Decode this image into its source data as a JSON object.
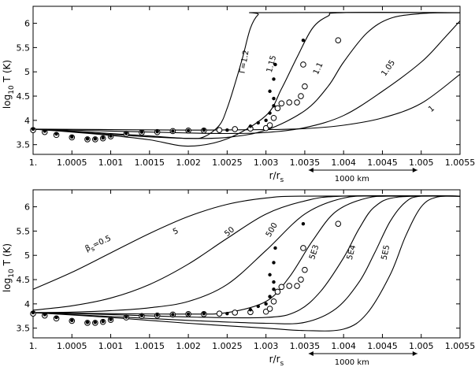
{
  "chart_data": [
    {
      "type": "line",
      "xlabel": "r/r",
      "xlabel_sub": "s",
      "ylabel": "log",
      "ylabel_sub": "10",
      "ylabel_rest": "T (K)",
      "xlim": [
        1.0,
        1.0055
      ],
      "ylim": [
        3.3,
        6.35
      ],
      "x_ticks": [
        1.0,
        1.0005,
        1.001,
        1.0015,
        1.002,
        1.0025,
        1.003,
        1.0035,
        1.004,
        1.0045,
        1.005,
        1.0055
      ],
      "x_tick_labels": [
        "1.",
        "1.0005",
        "1.001",
        "1.0015",
        "1.002",
        "1.0025",
        "1.003",
        "1.0035",
        "1.004",
        "1.0045",
        "1.005",
        "1.0055"
      ],
      "y_ticks": [
        3.5,
        4.0,
        4.5,
        5.0,
        5.5,
        6.0
      ],
      "y_tick_labels": [
        "3.5",
        "4",
        "4.5",
        "5",
        "5.5",
        "6"
      ],
      "scale_bar": {
        "label": "1000  km",
        "x_start": 1.00355,
        "x_end": 1.00495
      },
      "series": [
        {
          "name": "Γ=1.2",
          "label_at": [
            1.00275,
            5.2
          ],
          "label_rot": -80,
          "points": [
            [
              1.0,
              3.82
            ],
            [
              1.0005,
              3.77
            ],
            [
              1.001,
              3.71
            ],
            [
              1.0015,
              3.66
            ],
            [
              1.002,
              3.63
            ],
            [
              1.0022,
              3.66
            ],
            [
              1.0024,
              3.9
            ],
            [
              1.0025,
              4.25
            ],
            [
              1.0026,
              4.75
            ],
            [
              1.0027,
              5.3
            ],
            [
              1.0028,
              5.9
            ],
            [
              1.0029,
              6.18
            ],
            [
              1.003,
              6.22
            ],
            [
              1.0055,
              6.22
            ]
          ]
        },
        {
          "name": "1.15",
          "label_at": [
            1.0031,
            5.15
          ],
          "label_rot": -75,
          "points": [
            [
              1.0,
              3.82
            ],
            [
              1.0005,
              3.76
            ],
            [
              1.001,
              3.69
            ],
            [
              1.0015,
              3.6
            ],
            [
              1.002,
              3.47
            ],
            [
              1.0025,
              3.62
            ],
            [
              1.003,
              4.1
            ],
            [
              1.0032,
              4.65
            ],
            [
              1.0034,
              5.3
            ],
            [
              1.0036,
              5.9
            ],
            [
              1.0038,
              6.15
            ],
            [
              1.004,
              6.22
            ],
            [
              1.0055,
              6.22
            ]
          ]
        },
        {
          "name": "1.1",
          "label_at": [
            1.0037,
            5.05
          ],
          "label_rot": -65,
          "points": [
            [
              1.0,
              3.82
            ],
            [
              1.0005,
              3.78
            ],
            [
              1.001,
              3.73
            ],
            [
              1.0015,
              3.68
            ],
            [
              1.002,
              3.63
            ],
            [
              1.0025,
              3.65
            ],
            [
              1.003,
              3.8
            ],
            [
              1.0035,
              4.2
            ],
            [
              1.0038,
              4.7
            ],
            [
              1.004,
              5.2
            ],
            [
              1.0043,
              5.8
            ],
            [
              1.0046,
              6.1
            ],
            [
              1.005,
              6.2
            ],
            [
              1.0055,
              6.22
            ]
          ]
        },
        {
          "name": "1.05",
          "label_at": [
            1.0046,
            5.05
          ],
          "label_rot": -55,
          "points": [
            [
              1.0,
              3.82
            ],
            [
              1.001,
              3.78
            ],
            [
              1.002,
              3.74
            ],
            [
              1.0025,
              3.73
            ],
            [
              1.003,
              3.75
            ],
            [
              1.0035,
              3.85
            ],
            [
              1.004,
              4.1
            ],
            [
              1.0045,
              4.6
            ],
            [
              1.005,
              5.2
            ],
            [
              1.0053,
              5.7
            ],
            [
              1.0055,
              6.05
            ]
          ]
        },
        {
          "name": "1",
          "label_at": [
            1.00515,
            4.2
          ],
          "label_rot": -40,
          "points": [
            [
              1.0,
              3.82
            ],
            [
              1.001,
              3.81
            ],
            [
              1.002,
              3.8
            ],
            [
              1.003,
              3.81
            ],
            [
              1.0035,
              3.83
            ],
            [
              1.004,
              3.9
            ],
            [
              1.0045,
              4.05
            ],
            [
              1.005,
              4.35
            ],
            [
              1.0055,
              4.95
            ]
          ]
        }
      ],
      "open_circles": [
        [
          1.0,
          3.8
        ],
        [
          1.00015,
          3.76
        ],
        [
          1.0003,
          3.7
        ],
        [
          1.0005,
          3.65
        ],
        [
          1.0007,
          3.61
        ],
        [
          1.0008,
          3.61
        ],
        [
          1.0009,
          3.63
        ],
        [
          1.001,
          3.67
        ],
        [
          1.0012,
          3.72
        ],
        [
          1.0014,
          3.75
        ],
        [
          1.0016,
          3.76
        ],
        [
          1.0018,
          3.78
        ],
        [
          1.002,
          3.79
        ],
        [
          1.0022,
          3.79
        ],
        [
          1.0024,
          3.8
        ],
        [
          1.0026,
          3.82
        ],
        [
          1.0028,
          3.83
        ],
        [
          1.003,
          3.84
        ],
        [
          1.00305,
          3.9
        ],
        [
          1.0031,
          4.05
        ],
        [
          1.00315,
          4.25
        ],
        [
          1.0032,
          4.35
        ],
        [
          1.0033,
          4.37
        ],
        [
          1.0034,
          4.37
        ],
        [
          1.00345,
          4.5
        ],
        [
          1.0035,
          4.7
        ],
        [
          1.00348,
          5.15
        ],
        [
          1.00393,
          5.65
        ]
      ],
      "filled_circles": [
        [
          1.0,
          3.82
        ],
        [
          1.00015,
          3.78
        ],
        [
          1.0003,
          3.72
        ],
        [
          1.0005,
          3.66
        ],
        [
          1.0007,
          3.62
        ],
        [
          1.0008,
          3.62
        ],
        [
          1.0009,
          3.64
        ],
        [
          1.001,
          3.68
        ],
        [
          1.0012,
          3.73
        ],
        [
          1.0014,
          3.76
        ],
        [
          1.0016,
          3.77
        ],
        [
          1.0018,
          3.78
        ],
        [
          1.002,
          3.79
        ],
        [
          1.0022,
          3.8
        ],
        [
          1.0025,
          3.8
        ],
        [
          1.0028,
          3.88
        ],
        [
          1.0029,
          3.95
        ],
        [
          1.003,
          4.0
        ],
        [
          1.00305,
          4.15
        ],
        [
          1.0031,
          4.3
        ],
        [
          1.0031,
          4.45
        ],
        [
          1.00305,
          4.6
        ],
        [
          1.0031,
          4.85
        ],
        [
          1.00312,
          5.15
        ],
        [
          1.00348,
          5.65
        ]
      ]
    },
    {
      "type": "line",
      "xlabel": "r/r",
      "xlabel_sub": "s",
      "ylabel": "log",
      "ylabel_sub": "10",
      "ylabel_rest": "T (K)",
      "xlim": [
        1.0,
        1.0055
      ],
      "ylim": [
        3.3,
        6.35
      ],
      "x_ticks": [
        1.0,
        1.0005,
        1.001,
        1.0015,
        1.002,
        1.0025,
        1.003,
        1.0035,
        1.004,
        1.0045,
        1.005,
        1.0055
      ],
      "x_tick_labels": [
        "1.",
        "1.0005",
        "1.001",
        "1.0015",
        "1.002",
        "1.0025",
        "1.003",
        "1.0035",
        "1.004",
        "1.0045",
        "1.005",
        "1.0055"
      ],
      "y_ticks": [
        3.5,
        4.0,
        4.5,
        5.0,
        5.5,
        6.0
      ],
      "y_tick_labels": [
        "3.5",
        "4",
        "4.5",
        "5",
        "5.5",
        "6"
      ],
      "scale_bar": {
        "label": "1000  km",
        "x_start": 1.00355,
        "x_end": 1.00495
      },
      "series": [
        {
          "name": "β",
          "name_sub": "s",
          "name_rest": "=0.5",
          "label_at": [
            1.00085,
            5.2
          ],
          "label_rot": -25,
          "points": [
            [
              1.0,
              4.3
            ],
            [
              1.0005,
              4.65
            ],
            [
              1.001,
              5.05
            ],
            [
              1.0015,
              5.45
            ],
            [
              1.002,
              5.8
            ],
            [
              1.0025,
              6.05
            ],
            [
              1.003,
              6.18
            ],
            [
              1.0035,
              6.22
            ],
            [
              1.0055,
              6.22
            ]
          ]
        },
        {
          "name": "5",
          "label_at": [
            1.00185,
            5.45
          ],
          "label_rot": -25,
          "points": [
            [
              1.0,
              3.87
            ],
            [
              1.0005,
              3.96
            ],
            [
              1.001,
              4.12
            ],
            [
              1.0015,
              4.4
            ],
            [
              1.002,
              4.82
            ],
            [
              1.0025,
              5.35
            ],
            [
              1.003,
              5.85
            ],
            [
              1.0035,
              6.12
            ],
            [
              1.004,
              6.22
            ],
            [
              1.0055,
              6.22
            ]
          ]
        },
        {
          "name": "50",
          "label_at": [
            1.00255,
            5.45
          ],
          "label_rot": -40,
          "points": [
            [
              1.0,
              3.82
            ],
            [
              1.0005,
              3.83
            ],
            [
              1.001,
              3.86
            ],
            [
              1.0015,
              3.92
            ],
            [
              1.002,
              4.05
            ],
            [
              1.0025,
              4.4
            ],
            [
              1.003,
              5.1
            ],
            [
              1.0035,
              5.85
            ],
            [
              1.004,
              6.18
            ],
            [
              1.0045,
              6.22
            ],
            [
              1.0055,
              6.22
            ]
          ]
        },
        {
          "name": "500",
          "label_at": [
            1.0031,
            5.5
          ],
          "label_rot": -60,
          "points": [
            [
              1.0,
              3.82
            ],
            [
              1.001,
              3.8
            ],
            [
              1.002,
              3.79
            ],
            [
              1.0025,
              3.82
            ],
            [
              1.003,
              4.05
            ],
            [
              1.0033,
              4.55
            ],
            [
              1.0036,
              5.3
            ],
            [
              1.0039,
              5.9
            ],
            [
              1.0043,
              6.18
            ],
            [
              1.0047,
              6.22
            ],
            [
              1.0055,
              6.22
            ]
          ]
        },
        {
          "name": "5E3",
          "label_at": [
            1.00365,
            5.05
          ],
          "label_rot": -72,
          "points": [
            [
              1.0,
              3.82
            ],
            [
              1.001,
              3.78
            ],
            [
              1.002,
              3.73
            ],
            [
              1.003,
              3.72
            ],
            [
              1.0034,
              3.85
            ],
            [
              1.0037,
              4.25
            ],
            [
              1.004,
              4.95
            ],
            [
              1.0042,
              5.55
            ],
            [
              1.0044,
              6.0
            ],
            [
              1.0047,
              6.2
            ],
            [
              1.0055,
              6.22
            ]
          ]
        },
        {
          "name": "5E4",
          "label_at": [
            1.00413,
            5.05
          ],
          "label_rot": -75,
          "points": [
            [
              1.0,
              3.82
            ],
            [
              1.001,
              3.74
            ],
            [
              1.002,
              3.66
            ],
            [
              1.003,
              3.6
            ],
            [
              1.0035,
              3.62
            ],
            [
              1.0039,
              3.9
            ],
            [
              1.0042,
              4.45
            ],
            [
              1.0044,
              5.05
            ],
            [
              1.0046,
              5.7
            ],
            [
              1.0048,
              6.1
            ],
            [
              1.005,
              6.22
            ],
            [
              1.0055,
              6.22
            ]
          ]
        },
        {
          "name": "5E5",
          "label_at": [
            1.00457,
            5.05
          ],
          "label_rot": -78,
          "points": [
            [
              1.0,
              3.82
            ],
            [
              1.001,
              3.72
            ],
            [
              1.002,
              3.6
            ],
            [
              1.003,
              3.5
            ],
            [
              1.0035,
              3.45
            ],
            [
              1.004,
              3.48
            ],
            [
              1.0043,
              3.8
            ],
            [
              1.0046,
              4.6
            ],
            [
              1.0048,
              5.4
            ],
            [
              1.005,
              6.0
            ],
            [
              1.0052,
              6.2
            ],
            [
              1.0055,
              6.22
            ]
          ]
        }
      ],
      "open_circles": [
        [
          1.0,
          3.8
        ],
        [
          1.00015,
          3.76
        ],
        [
          1.0003,
          3.7
        ],
        [
          1.0005,
          3.65
        ],
        [
          1.0007,
          3.61
        ],
        [
          1.0008,
          3.61
        ],
        [
          1.0009,
          3.63
        ],
        [
          1.001,
          3.67
        ],
        [
          1.0012,
          3.72
        ],
        [
          1.0014,
          3.75
        ],
        [
          1.0016,
          3.76
        ],
        [
          1.0018,
          3.78
        ],
        [
          1.002,
          3.79
        ],
        [
          1.0022,
          3.79
        ],
        [
          1.0024,
          3.8
        ],
        [
          1.0026,
          3.82
        ],
        [
          1.0028,
          3.83
        ],
        [
          1.003,
          3.84
        ],
        [
          1.00305,
          3.9
        ],
        [
          1.0031,
          4.05
        ],
        [
          1.00315,
          4.25
        ],
        [
          1.0032,
          4.35
        ],
        [
          1.0033,
          4.37
        ],
        [
          1.0034,
          4.37
        ],
        [
          1.00345,
          4.5
        ],
        [
          1.0035,
          4.7
        ],
        [
          1.00348,
          5.15
        ],
        [
          1.00393,
          5.65
        ]
      ],
      "filled_circles": [
        [
          1.0,
          3.82
        ],
        [
          1.00015,
          3.78
        ],
        [
          1.0003,
          3.72
        ],
        [
          1.0005,
          3.66
        ],
        [
          1.0007,
          3.62
        ],
        [
          1.0008,
          3.62
        ],
        [
          1.0009,
          3.64
        ],
        [
          1.001,
          3.68
        ],
        [
          1.0012,
          3.73
        ],
        [
          1.0014,
          3.76
        ],
        [
          1.0016,
          3.77
        ],
        [
          1.0018,
          3.78
        ],
        [
          1.002,
          3.79
        ],
        [
          1.0022,
          3.8
        ],
        [
          1.0025,
          3.8
        ],
        [
          1.0028,
          3.88
        ],
        [
          1.0029,
          3.95
        ],
        [
          1.003,
          4.0
        ],
        [
          1.00305,
          4.15
        ],
        [
          1.0031,
          4.3
        ],
        [
          1.0031,
          4.45
        ],
        [
          1.00305,
          4.6
        ],
        [
          1.0031,
          4.85
        ],
        [
          1.00312,
          5.15
        ],
        [
          1.00348,
          5.65
        ]
      ]
    }
  ]
}
